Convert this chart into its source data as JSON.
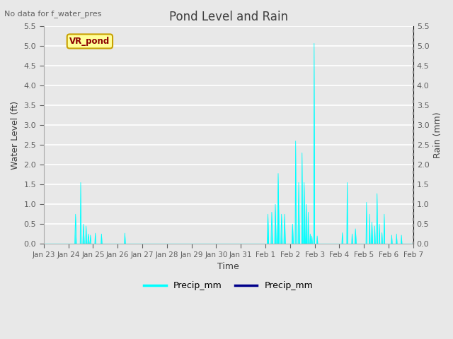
{
  "title": "Pond Level and Rain",
  "no_data_text": "No data for f_water_pres",
  "xlabel": "Time",
  "ylabel_left": "Water Level (ft)",
  "ylabel_right": "Rain (mm)",
  "ylim": [
    0.0,
    5.5
  ],
  "vr_pond_label": "VR_pond",
  "vr_pond_box_color": "#ffff99",
  "vr_pond_text_color": "#8b0000",
  "background_color": "#e8e8e8",
  "grid_color": "#ffffff",
  "bar_color": "#00ffff",
  "legend_cyan": "Precip_mm",
  "legend_blue": "Precip_mm",
  "legend_cyan_color": "#00ffff",
  "legend_blue_color": "#00008b",
  "x_tick_labels": [
    "Jan 23",
    "Jan 24",
    "Jan 25",
    "Jan 26",
    "Jan 27",
    "Jan 28",
    "Jan 29",
    "Jan 30",
    "Jan 31",
    "Feb 1",
    "Feb 2",
    "Feb 3",
    "Feb 4",
    "Feb 5",
    "Feb 6",
    "Feb 7"
  ],
  "n_days": 15,
  "n_per_day": 96
}
